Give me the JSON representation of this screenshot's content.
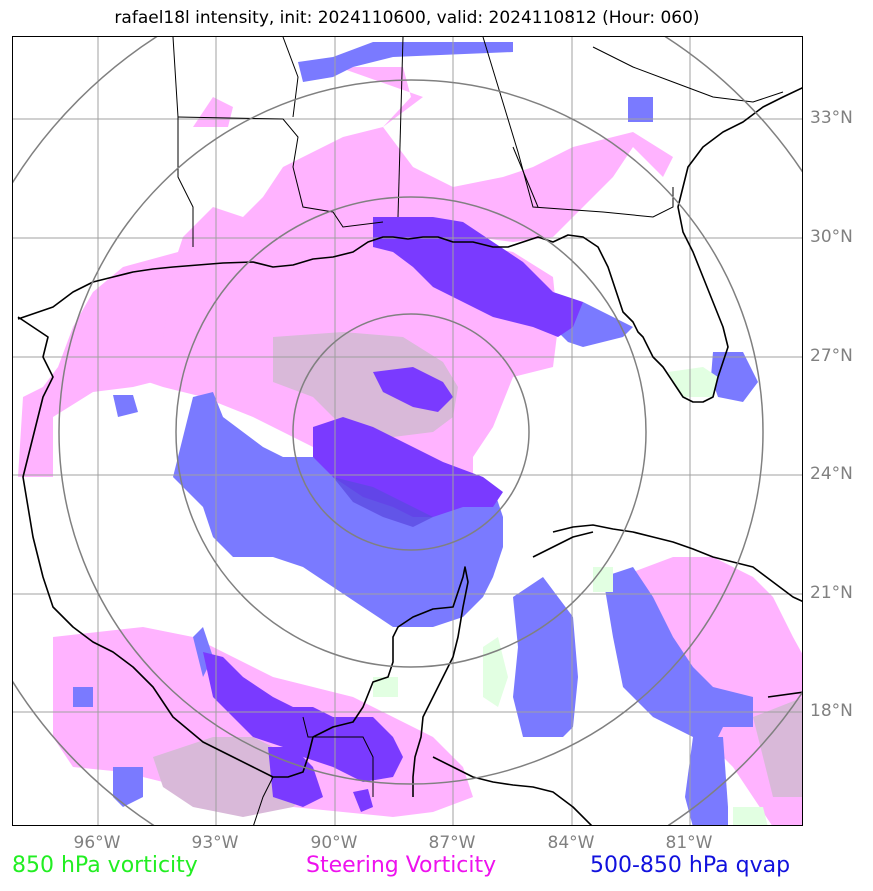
{
  "title": "rafael18l intensity, init: 2024110600, valid: 2024110812 (Hour: 060)",
  "lat_labels": [
    "33°N",
    "30°N",
    "27°N",
    "24°N",
    "21°N",
    "18°N"
  ],
  "lon_labels": [
    "96°W",
    "93°W",
    "90°W",
    "87°W",
    "84°W",
    "81°W"
  ],
  "legend": {
    "vorticity_850": {
      "label": "850 hPa vorticity",
      "color": "#22ee22"
    },
    "steering": {
      "label": "Steering Vorticity",
      "color": "#ee11ee"
    },
    "qvap": {
      "label": "500-850 hPa qvap",
      "color": "#1111dd"
    }
  },
  "colors": {
    "steering_fill": "#ffb3ff",
    "qvap_fill": "#7a7aff",
    "overlap_fill": "#7a3aff",
    "grey_fill": "#d9b9d9",
    "green_fill": "#e2ffe2",
    "coast": "#000000",
    "grid": "#a0a0a0",
    "rings": "#808080"
  },
  "map": {
    "center_lat": 25.0,
    "center_lon": -88.0,
    "lon_range": [
      -98.0,
      -78.0
    ],
    "lat_range": [
      15.0,
      35.0
    ],
    "range_rings_deg": [
      3,
      6,
      9,
      12
    ]
  }
}
